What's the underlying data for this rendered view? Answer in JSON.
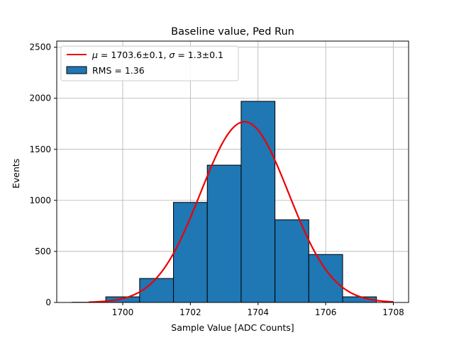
{
  "chart_data": {
    "type": "bar",
    "title": "Baseline value, Ped Run",
    "xlabel": "Sample Value [ADC Counts]",
    "ylabel": "Events",
    "xlim": [
      1698.05,
      1708.45
    ],
    "ylim": [
      0,
      2560
    ],
    "grid": true,
    "x_ticks": [
      1700,
      1702,
      1704,
      1706,
      1708
    ],
    "y_ticks": [
      0,
      500,
      1000,
      1500,
      2000,
      2500
    ],
    "bins": {
      "edges": [
        1698.5,
        1699.5,
        1700.5,
        1701.5,
        1702.5,
        1703.5,
        1704.5,
        1705.5,
        1706.5,
        1707.5
      ],
      "counts": [
        2,
        55,
        235,
        980,
        1345,
        1970,
        810,
        470,
        55
      ],
      "color": "#1f77b4",
      "edge_color": "#000000"
    },
    "fit": {
      "mu": 1703.6,
      "sigma": 1.3,
      "amplitude": 1770,
      "x_range": [
        1699,
        1708
      ],
      "color": "#ee0000"
    },
    "legend": {
      "location": "upper-left",
      "entries": [
        {
          "kind": "line",
          "mu_symbol": "μ",
          "mu_text": " = 1703.6±0.1, ",
          "sigma_symbol": "σ",
          "sigma_text": " = 1.3±0.1"
        },
        {
          "kind": "patch",
          "label": "RMS = 1.36"
        }
      ]
    }
  }
}
